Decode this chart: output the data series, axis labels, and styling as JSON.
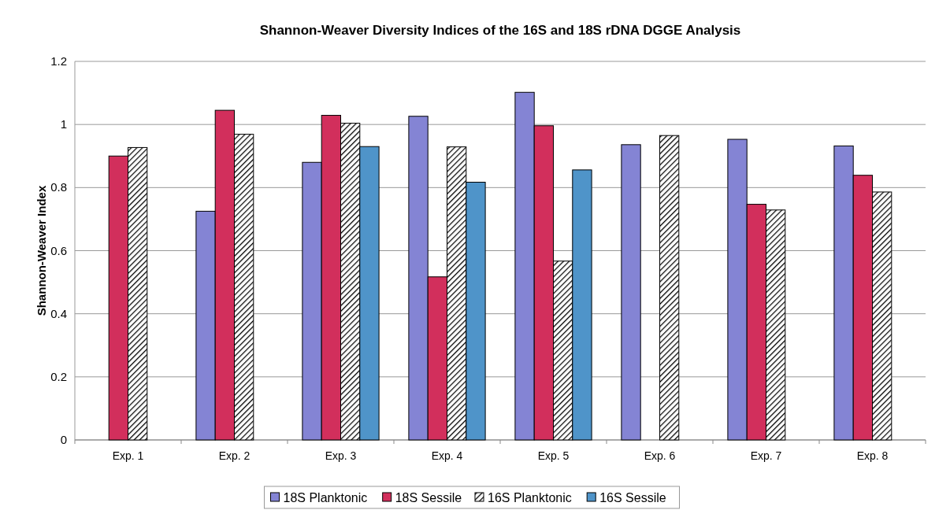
{
  "chart_data": {
    "type": "bar",
    "title": "Shannon-Weaver Diversity Indices of the 16S and 18S rDNA DGGE Analysis",
    "ylabel": "Shannon-Weaver Index",
    "categories": [
      "Exp. 1",
      "Exp. 2",
      "Exp. 3",
      "Exp. 4",
      "Exp. 5",
      "Exp. 6",
      "Exp. 7",
      "Exp. 8"
    ],
    "series": [
      {
        "name": "18S Planktonic",
        "color": "#8484d4",
        "values": [
          null,
          0.725,
          0.88,
          1.026,
          1.102,
          0.936,
          0.953,
          0.932
        ]
      },
      {
        "name": "18S Sessile",
        "color": "#d22f5c",
        "values": [
          0.9,
          1.045,
          1.029,
          0.517,
          0.996,
          null,
          0.747,
          0.839
        ]
      },
      {
        "name": "16S Planktonic",
        "color": "#000000",
        "values": [
          0.927,
          0.969,
          1.004,
          0.929,
          0.567,
          0.965,
          0.729,
          0.786
        ]
      },
      {
        "name": "16S Sessile",
        "color": "#4f94c9",
        "values": [
          null,
          null,
          0.93,
          0.817,
          0.856,
          0,
          0,
          null
        ]
      }
    ],
    "ylim": [
      0,
      1.2
    ],
    "yticks": [
      0,
      0.2,
      0.4,
      0.6,
      0.8,
      1,
      1.2
    ],
    "grid": "y",
    "legend": "bottom"
  }
}
